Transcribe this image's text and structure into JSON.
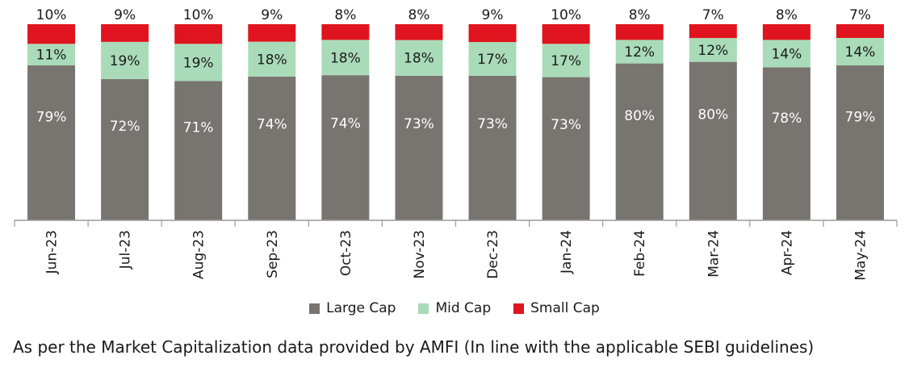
{
  "chart_data": {
    "type": "bar",
    "stacked": true,
    "categories": [
      "Jun-23",
      "Jul-23",
      "Aug-23",
      "Sep-23",
      "Oct-23",
      "Nov-23",
      "Dec-23",
      "Jan-24",
      "Feb-24",
      "Mar-24",
      "Apr-24",
      "May-24"
    ],
    "series": [
      {
        "name": "Large Cap",
        "color": "#787470",
        "values": [
          79,
          72,
          71,
          74,
          74,
          73,
          73,
          73,
          80,
          80,
          78,
          79
        ]
      },
      {
        "name": "Mid Cap",
        "color": "#a9dbb8",
        "values": [
          11,
          19,
          19,
          18,
          18,
          18,
          17,
          17,
          12,
          12,
          14,
          14
        ]
      },
      {
        "name": "Small Cap",
        "color": "#e0141e",
        "values": [
          10,
          9,
          10,
          9,
          8,
          8,
          9,
          10,
          8,
          7,
          8,
          7
        ]
      }
    ],
    "data_labels": true,
    "label_suffix": "%",
    "legend_position": "bottom",
    "grid": false
  },
  "footnote": "As per the Market Capitalization data provided by AMFI (In line with the applicable SEBI guidelines)"
}
